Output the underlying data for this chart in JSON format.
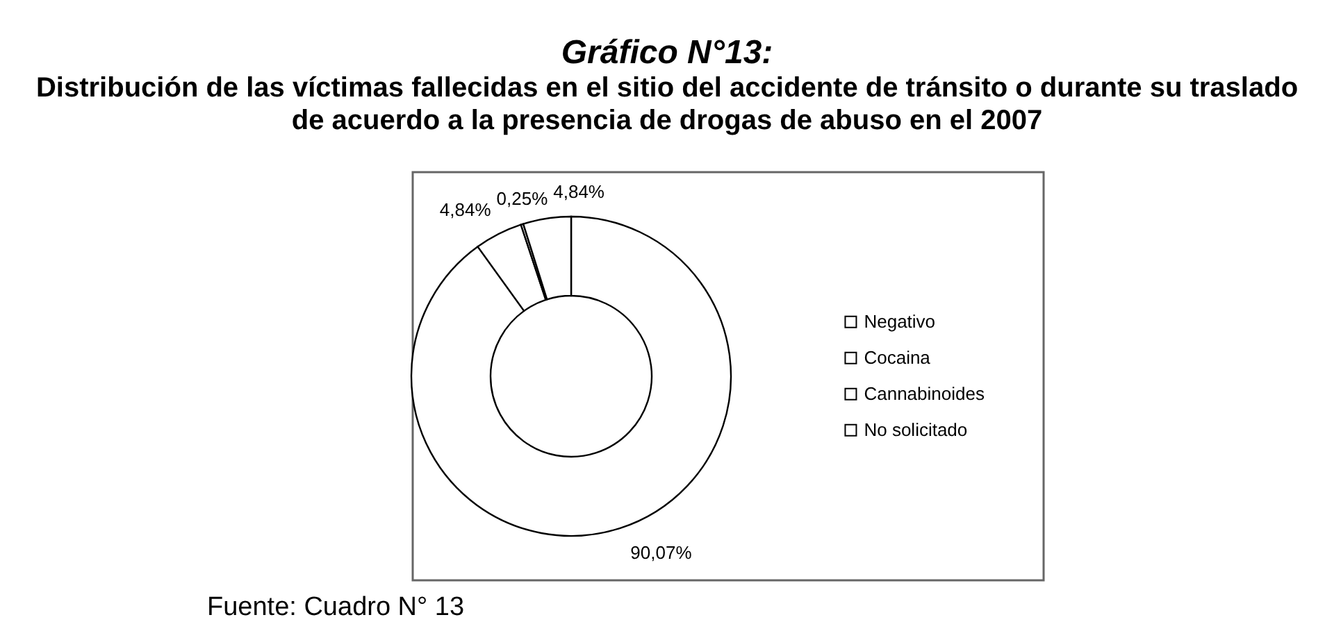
{
  "chart_data": {
    "type": "donut",
    "title": "Gráfico N°13:",
    "subtitle": "Distribución de las víctimas fallecidas en el sitio del accidente de tránsito o durante su traslado de acuerdo a la presencia de drogas de abuso en el 2007",
    "categories": [
      "Negativo",
      "Cocaina",
      "Cannabinoides",
      "No solicitado"
    ],
    "values": [
      90.07,
      4.84,
      0.25,
      4.84
    ],
    "colors": [
      "#ffffff",
      "#ffffff",
      "#ffffff",
      "#ffffff"
    ],
    "value_labels": [
      "90,07%",
      "4,84%",
      "0,25%",
      "4,84%"
    ],
    "legend": "right",
    "annotations": [
      "Fuente: Cuadro N° 13"
    ]
  }
}
